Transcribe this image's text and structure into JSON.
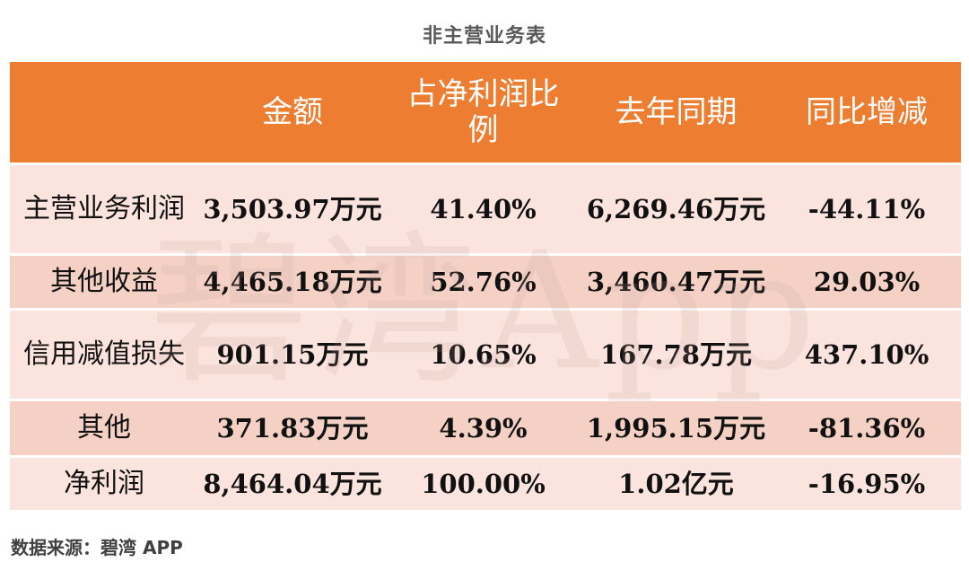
{
  "title": "非主营业务表",
  "watermark": "碧湾App",
  "table": {
    "headers": [
      "",
      "金额",
      "占净利润比例",
      "去年同期",
      "同比增减"
    ],
    "rows": [
      [
        "主营业务利润",
        "3,503.97万元",
        "41.40%",
        "6,269.46万元",
        "-44.11%"
      ],
      [
        "其他收益",
        "4,465.18万元",
        "52.76%",
        "3,460.47万元",
        "29.03%"
      ],
      [
        "信用减值损失",
        "901.15万元",
        "10.65%",
        "167.78万元",
        "437.10%"
      ],
      [
        "其他",
        "371.83万元",
        "4.39%",
        "1,995.15万元",
        "-81.36%"
      ],
      [
        "净利润",
        "8,464.04万元",
        "100.00%",
        "1.02亿元",
        "-16.95%"
      ]
    ]
  },
  "footer": "数据来源：碧湾 APP",
  "colors": {
    "header_bg": "#ed7d31",
    "row_light": "#fbe4dd",
    "row_dark": "#f5d1c5"
  }
}
